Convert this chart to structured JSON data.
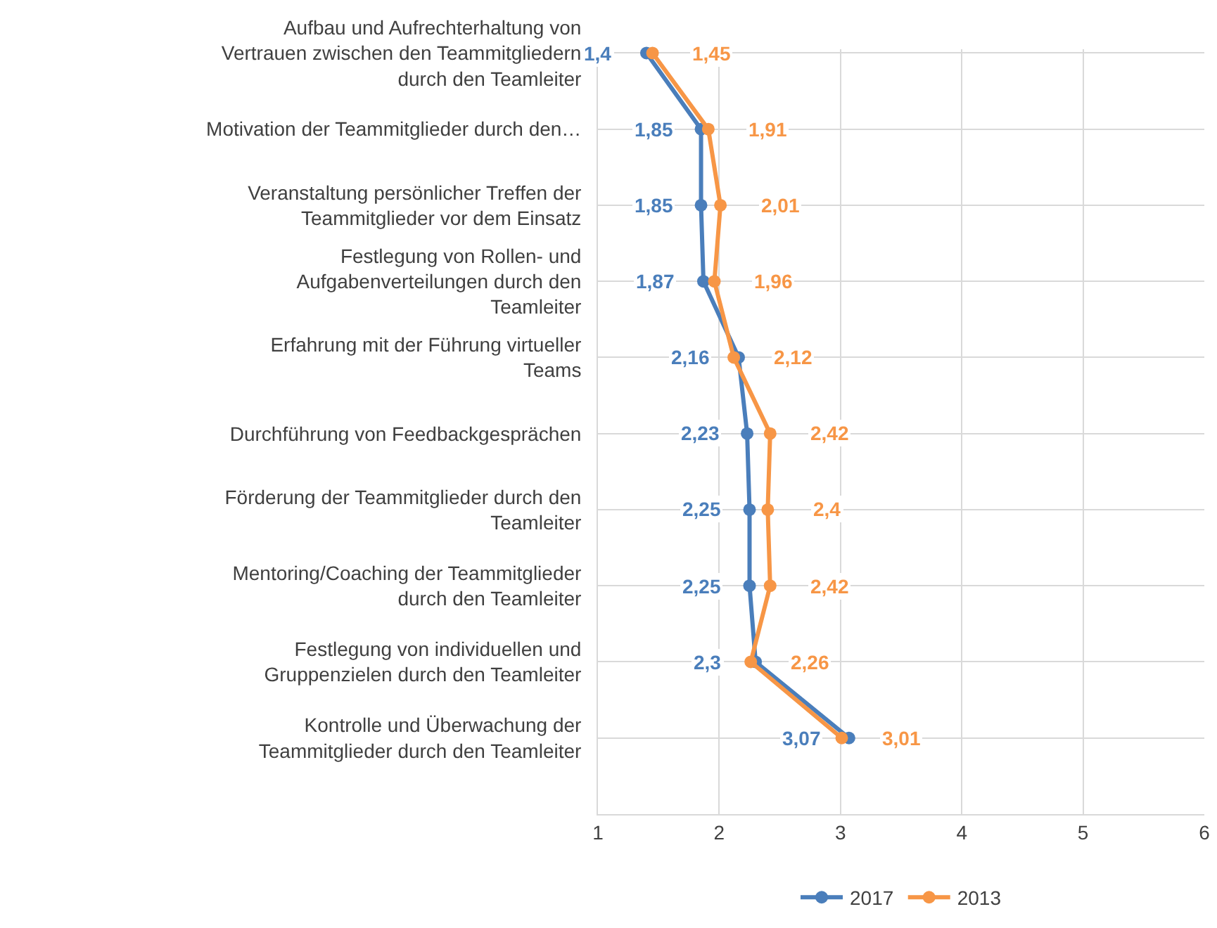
{
  "chart_data": {
    "type": "line",
    "orientation": "horizontal",
    "categories": [
      "Aufbau und Aufrechterhaltung von Vertrauen zwischen den Teammitgliedern durch den Teamleiter",
      "Motivation der Teammitglieder durch den…",
      "Veranstaltung persönlicher Treffen der Teammitglieder vor dem Einsatz",
      "Festlegung von Rollen- und Aufgabenverteilungen durch den Teamleiter",
      "Erfahrung mit der Führung virtueller Teams",
      "Durchführung von Feedbackgesprächen",
      "Förderung der Teammitglieder durch den Teamleiter",
      "Mentoring/Coaching der Teammitglieder durch den Teamleiter",
      "Festlegung von individuellen und Gruppenzielen durch den Teamleiter",
      "Kontrolle und Überwachung der Teammitglieder durch den Teamleiter"
    ],
    "series": [
      {
        "name": "2017",
        "color": "#4a7ebb",
        "values": [
          1.4,
          1.85,
          1.85,
          1.87,
          2.16,
          2.23,
          2.25,
          2.25,
          2.3,
          3.07
        ],
        "value_labels": [
          "1,4",
          "1,85",
          "1,85",
          "1,87",
          "2,16",
          "2,23",
          "2,25",
          "2,25",
          "2,3",
          "3,07"
        ]
      },
      {
        "name": "2013",
        "color": "#f79646",
        "values": [
          1.45,
          1.91,
          2.01,
          1.96,
          2.12,
          2.42,
          2.4,
          2.42,
          2.26,
          3.01
        ],
        "value_labels": [
          "1,45",
          "1,91",
          "2,01",
          "1,96",
          "2,12",
          "2,42",
          "2,4",
          "2,42",
          "2,26",
          "3,01"
        ]
      }
    ],
    "xlim": [
      1,
      6
    ],
    "xticks": [
      1,
      2,
      3,
      4,
      5,
      6
    ],
    "grid": true,
    "legend": "bottom",
    "marker": "circle",
    "line_style": "solid"
  }
}
